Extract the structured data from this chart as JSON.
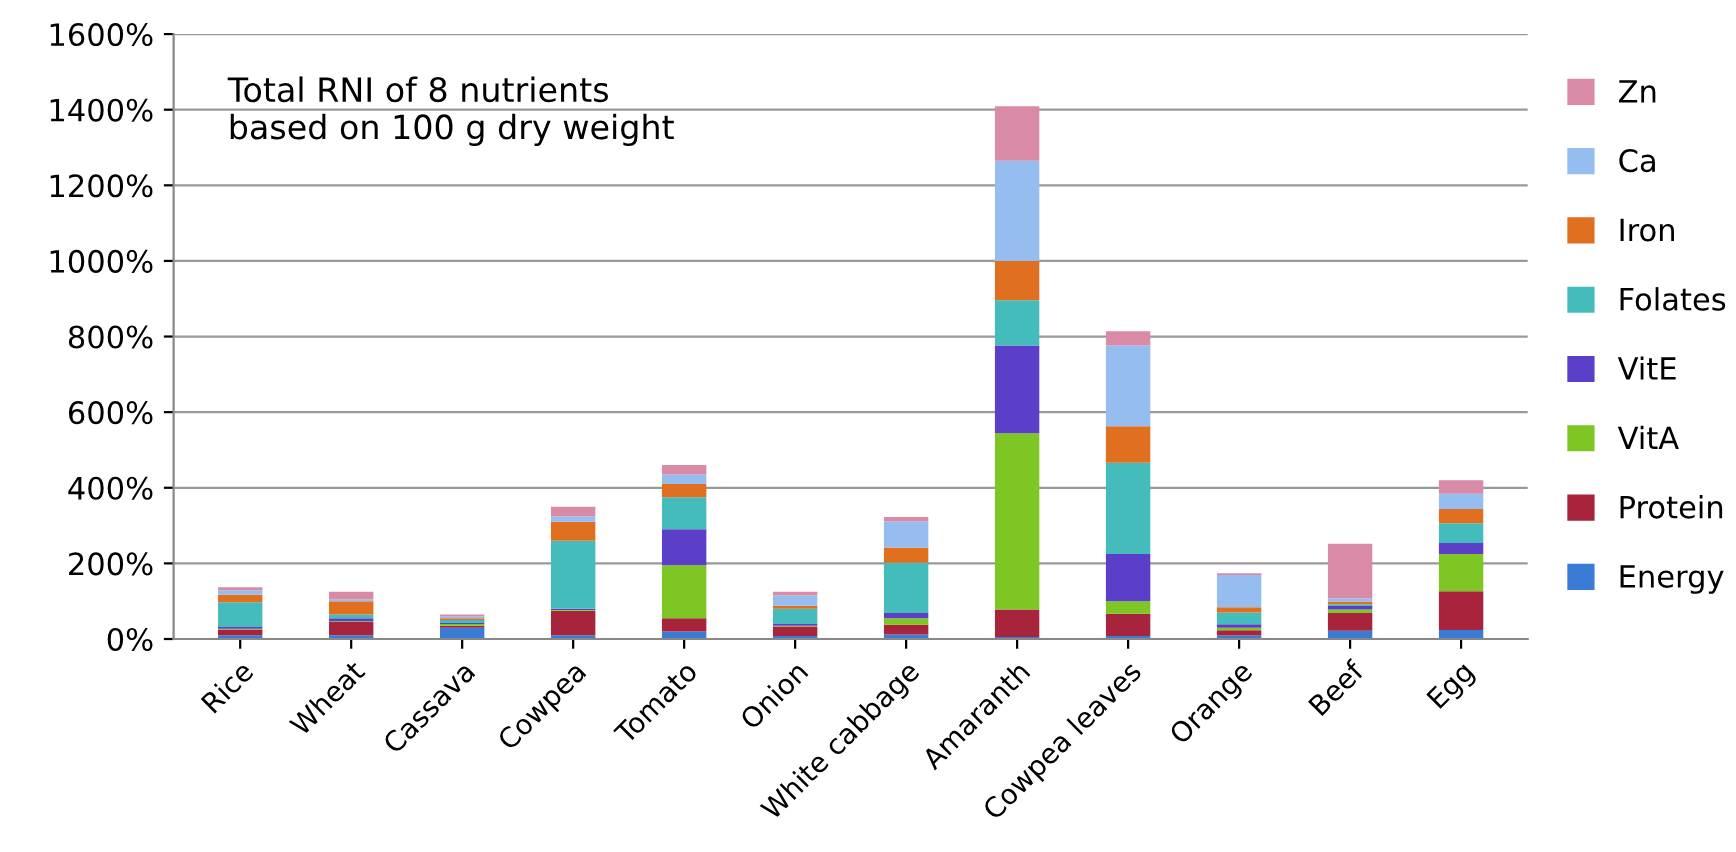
{
  "chart_data": {
    "type": "bar",
    "stacked": true,
    "categories": [
      "Rice",
      "Wheat",
      "Cassava",
      "Cowpea",
      "Tomato",
      "Onion",
      "White cabbage",
      "Amaranth",
      "Cowpea leaves",
      "Orange",
      "Beef",
      "Egg"
    ],
    "series": [
      {
        "name": "Energy",
        "color": "#3a7bd5",
        "values": [
          10,
          10,
          30,
          10,
          20,
          8,
          12,
          5,
          8,
          9,
          22,
          24
        ]
      },
      {
        "name": "Protein",
        "color": "#a8233c",
        "values": [
          15,
          35,
          5,
          65,
          35,
          25,
          26,
          73,
          59,
          14,
          47,
          102
        ]
      },
      {
        "name": "VitA",
        "color": "#7dc623",
        "values": [
          2,
          2,
          5,
          2,
          140,
          2,
          17,
          466,
          33,
          7,
          9,
          99
        ]
      },
      {
        "name": "VitE",
        "color": "#5b3fc8",
        "values": [
          5,
          8,
          2,
          3,
          95,
          5,
          14,
          232,
          125,
          9,
          9,
          29
        ]
      },
      {
        "name": "Folates",
        "color": "#45bcbc",
        "values": [
          65,
          10,
          8,
          180,
          85,
          40,
          133,
          120,
          241,
          31,
          5,
          52
        ]
      },
      {
        "name": "Iron",
        "color": "#e07020",
        "values": [
          20,
          35,
          5,
          50,
          35,
          8,
          40,
          104,
          97,
          14,
          7,
          38
        ]
      },
      {
        "name": "Ca",
        "color": "#95bdef",
        "values": [
          12,
          5,
          5,
          15,
          25,
          27,
          69,
          265,
          213,
          85,
          9,
          40
        ]
      },
      {
        "name": "Zn",
        "color": "#d98aa6",
        "values": [
          8,
          20,
          5,
          25,
          25,
          10,
          12,
          144,
          38,
          5,
          144,
          36
        ]
      }
    ],
    "ylim": [
      0,
      1600
    ],
    "yticks": [
      {
        "value": 0,
        "label": "0%"
      },
      {
        "value": 200,
        "label": "200%"
      },
      {
        "value": 400,
        "label": "400%"
      },
      {
        "value": 600,
        "label": "600%"
      },
      {
        "value": 800,
        "label": "800%"
      },
      {
        "value": 1000,
        "label": "1000%"
      },
      {
        "value": 1200,
        "label": "1200%"
      },
      {
        "value": 1400,
        "label": "1400%"
      },
      {
        "value": 1600,
        "label": "1600%"
      }
    ],
    "annotations": [
      "Total RNI of 8 nutrients\nbased on 100 g dry weight"
    ],
    "grid": "y",
    "legend": "right"
  }
}
